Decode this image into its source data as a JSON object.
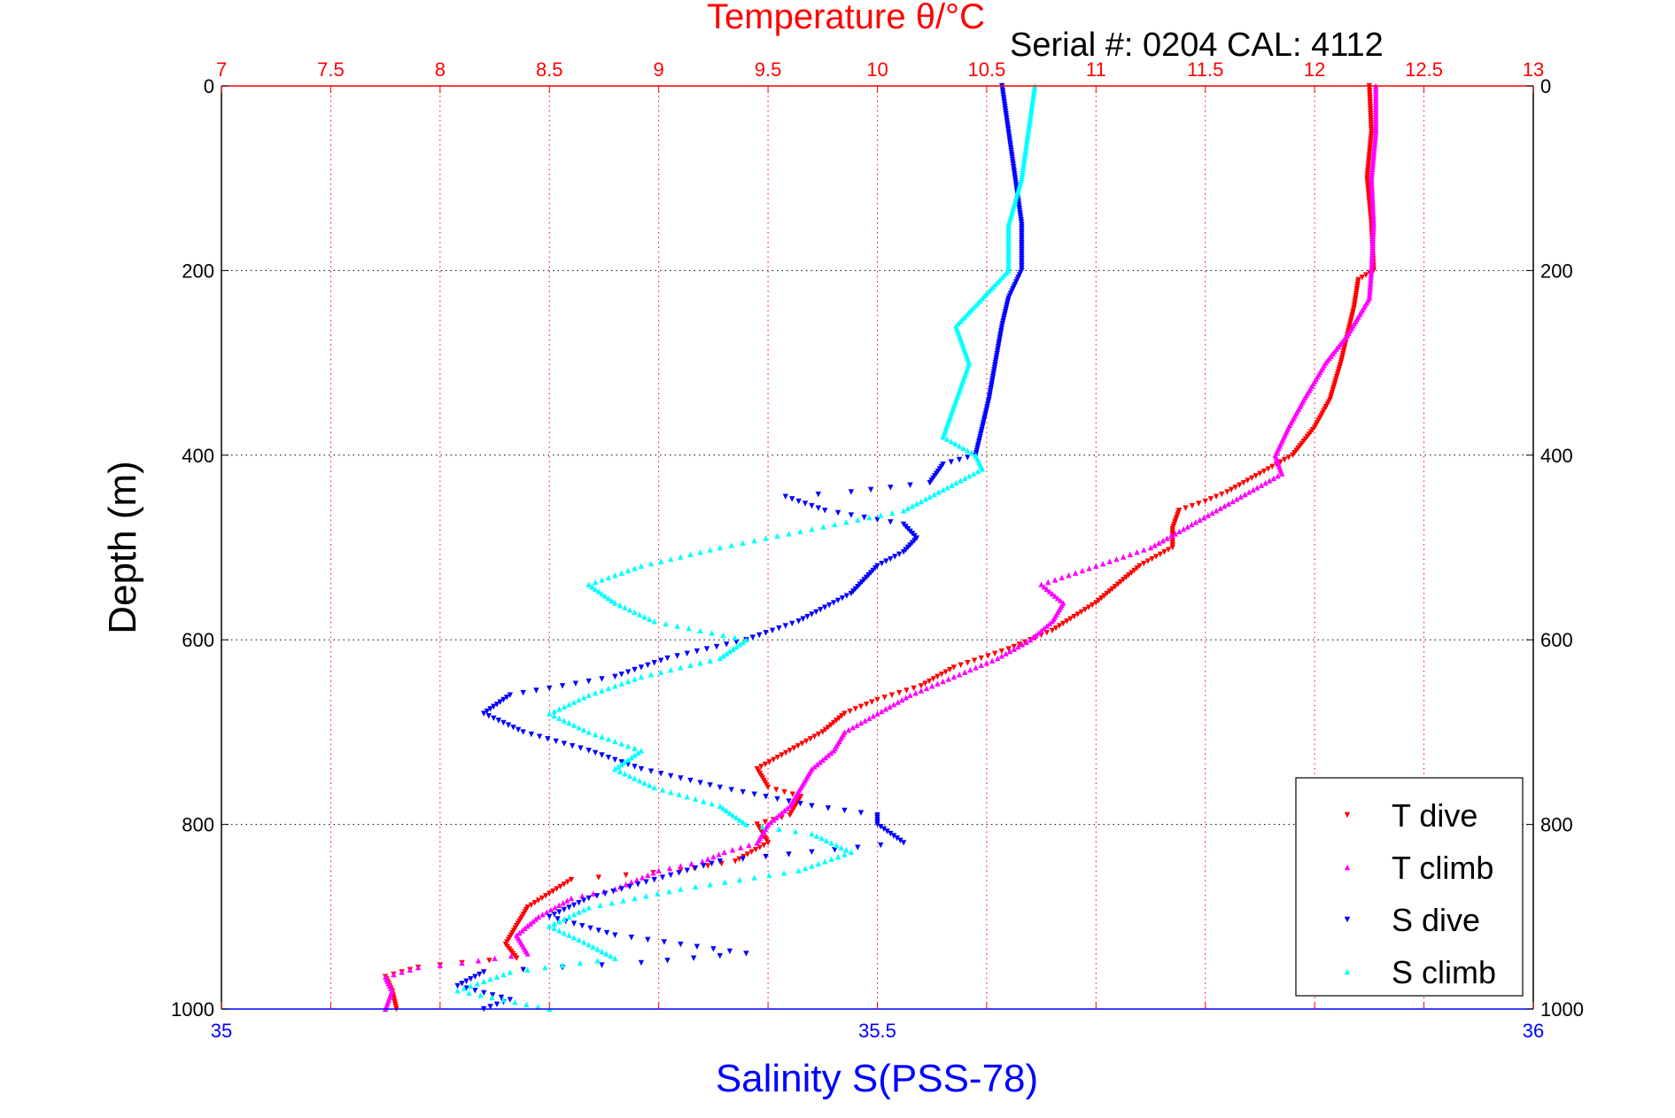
{
  "chart_data": {
    "type": "scatter",
    "title": "Temperature θ/°C",
    "subtitle": "Serial #: 0204  CAL: 4112",
    "ylabel": "Depth (m)",
    "xlabel": "Salinity S(PSS-78)",
    "ylim": [
      0,
      1000
    ],
    "ylim_reversed": true,
    "y_ticks": [
      "0",
      "200",
      "400",
      "600",
      "800",
      "1000"
    ],
    "temperature_axis": {
      "lim": [
        7,
        13
      ],
      "ticks": [
        "7",
        "7.5",
        "8",
        "8.5",
        "9",
        "9.5",
        "10",
        "10.5",
        "11",
        "11.5",
        "12",
        "12.5",
        "13"
      ],
      "position": "top",
      "color": "#ff0000"
    },
    "salinity_axis": {
      "lim": [
        35,
        36
      ],
      "ticks": [
        "35",
        "35.5",
        "36"
      ],
      "position": "bottom",
      "color": "#0000ff"
    },
    "grid": true,
    "legend_position": "bottom-right",
    "series": [
      {
        "name": "T dive",
        "axis": "temperature",
        "color": "#ff0000",
        "marker": "triangle-down",
        "points": [
          [
            12.25,
            0
          ],
          [
            12.26,
            50
          ],
          [
            12.24,
            100
          ],
          [
            12.26,
            150
          ],
          [
            12.27,
            200
          ],
          [
            12.2,
            210
          ],
          [
            12.18,
            240
          ],
          [
            12.15,
            270
          ],
          [
            12.12,
            300
          ],
          [
            12.07,
            340
          ],
          [
            12.0,
            370
          ],
          [
            11.9,
            400
          ],
          [
            11.75,
            420
          ],
          [
            11.6,
            440
          ],
          [
            11.5,
            450
          ],
          [
            11.38,
            460
          ],
          [
            11.35,
            480
          ],
          [
            11.35,
            500
          ],
          [
            11.2,
            520
          ],
          [
            11.1,
            540
          ],
          [
            11.0,
            560
          ],
          [
            10.9,
            575
          ],
          [
            10.8,
            590
          ],
          [
            10.6,
            610
          ],
          [
            10.35,
            630
          ],
          [
            10.2,
            650
          ],
          [
            10.0,
            665
          ],
          [
            9.85,
            680
          ],
          [
            9.75,
            700
          ],
          [
            9.6,
            720
          ],
          [
            9.45,
            740
          ],
          [
            9.5,
            760
          ],
          [
            9.65,
            770
          ],
          [
            9.6,
            790
          ],
          [
            9.45,
            800
          ],
          [
            9.5,
            820
          ],
          [
            9.35,
            840
          ],
          [
            9.1,
            850
          ],
          [
            8.6,
            860
          ],
          [
            8.5,
            875
          ],
          [
            8.4,
            890
          ],
          [
            8.35,
            910
          ],
          [
            8.3,
            930
          ],
          [
            8.35,
            945
          ],
          [
            8.1,
            950
          ],
          [
            7.9,
            955
          ],
          [
            7.75,
            965
          ],
          [
            7.78,
            980
          ],
          [
            7.8,
            1000
          ]
        ]
      },
      {
        "name": "T climb",
        "axis": "temperature",
        "color": "#ff00ff",
        "marker": "triangle-up",
        "points": [
          [
            12.28,
            0
          ],
          [
            12.28,
            50
          ],
          [
            12.26,
            100
          ],
          [
            12.27,
            150
          ],
          [
            12.26,
            200
          ],
          [
            12.25,
            230
          ],
          [
            12.2,
            250
          ],
          [
            12.15,
            270
          ],
          [
            12.05,
            300
          ],
          [
            11.95,
            340
          ],
          [
            11.88,
            370
          ],
          [
            11.82,
            400
          ],
          [
            11.85,
            420
          ],
          [
            11.7,
            440
          ],
          [
            11.55,
            460
          ],
          [
            11.4,
            480
          ],
          [
            11.25,
            500
          ],
          [
            11.0,
            520
          ],
          [
            10.75,
            540
          ],
          [
            10.85,
            560
          ],
          [
            10.8,
            580
          ],
          [
            10.7,
            600
          ],
          [
            10.55,
            620
          ],
          [
            10.35,
            640
          ],
          [
            10.15,
            660
          ],
          [
            10.0,
            680
          ],
          [
            9.85,
            700
          ],
          [
            9.8,
            720
          ],
          [
            9.7,
            740
          ],
          [
            9.65,
            760
          ],
          [
            9.6,
            780
          ],
          [
            9.5,
            800
          ],
          [
            9.45,
            820
          ],
          [
            9.3,
            830
          ],
          [
            9.2,
            840
          ],
          [
            9.0,
            850
          ],
          [
            8.8,
            870
          ],
          [
            8.6,
            880
          ],
          [
            8.45,
            900
          ],
          [
            8.35,
            920
          ],
          [
            8.4,
            940
          ],
          [
            8.1,
            950
          ],
          [
            7.9,
            955
          ],
          [
            7.75,
            965
          ],
          [
            7.78,
            980
          ],
          [
            7.75,
            1000
          ]
        ]
      },
      {
        "name": "S dive",
        "axis": "salinity",
        "color": "#0000ff",
        "marker": "triangle-down",
        "points": [
          [
            35.595,
            0
          ],
          [
            35.6,
            50
          ],
          [
            35.605,
            100
          ],
          [
            35.61,
            150
          ],
          [
            35.61,
            200
          ],
          [
            35.6,
            230
          ],
          [
            35.595,
            260
          ],
          [
            35.59,
            300
          ],
          [
            35.585,
            340
          ],
          [
            35.58,
            370
          ],
          [
            35.575,
            400
          ],
          [
            35.55,
            410
          ],
          [
            35.54,
            430
          ],
          [
            35.48,
            440
          ],
          [
            35.43,
            445
          ],
          [
            35.46,
            460
          ],
          [
            35.52,
            475
          ],
          [
            35.53,
            490
          ],
          [
            35.52,
            505
          ],
          [
            35.5,
            520
          ],
          [
            35.48,
            550
          ],
          [
            35.44,
            580
          ],
          [
            35.4,
            600
          ],
          [
            35.34,
            620
          ],
          [
            35.3,
            640
          ],
          [
            35.22,
            660
          ],
          [
            35.2,
            680
          ],
          [
            35.23,
            700
          ],
          [
            35.28,
            720
          ],
          [
            35.32,
            740
          ],
          [
            35.38,
            760
          ],
          [
            35.45,
            780
          ],
          [
            35.5,
            790
          ],
          [
            35.5,
            800
          ],
          [
            35.52,
            820
          ],
          [
            35.45,
            830
          ],
          [
            35.38,
            840
          ],
          [
            35.33,
            860
          ],
          [
            35.28,
            880
          ],
          [
            35.25,
            900
          ],
          [
            35.3,
            920
          ],
          [
            35.4,
            940
          ],
          [
            35.32,
            950
          ],
          [
            35.2,
            960
          ],
          [
            35.18,
            975
          ],
          [
            35.22,
            990
          ],
          [
            35.2,
            1000
          ]
        ]
      },
      {
        "name": "S climb",
        "axis": "salinity",
        "color": "#00ffff",
        "marker": "triangle-up",
        "points": [
          [
            35.62,
            0
          ],
          [
            35.615,
            50
          ],
          [
            35.61,
            100
          ],
          [
            35.6,
            150
          ],
          [
            35.6,
            200
          ],
          [
            35.58,
            230
          ],
          [
            35.56,
            260
          ],
          [
            35.57,
            300
          ],
          [
            35.56,
            340
          ],
          [
            35.55,
            380
          ],
          [
            35.575,
            400
          ],
          [
            35.58,
            415
          ],
          [
            35.56,
            430
          ],
          [
            35.52,
            460
          ],
          [
            35.45,
            480
          ],
          [
            35.38,
            500
          ],
          [
            35.32,
            520
          ],
          [
            35.28,
            540
          ],
          [
            35.3,
            560
          ],
          [
            35.33,
            580
          ],
          [
            35.4,
            600
          ],
          [
            35.38,
            620
          ],
          [
            35.32,
            640
          ],
          [
            35.28,
            660
          ],
          [
            35.25,
            680
          ],
          [
            35.28,
            700
          ],
          [
            35.32,
            720
          ],
          [
            35.3,
            740
          ],
          [
            35.33,
            760
          ],
          [
            35.38,
            780
          ],
          [
            35.4,
            800
          ],
          [
            35.45,
            810
          ],
          [
            35.48,
            830
          ],
          [
            35.44,
            850
          ],
          [
            35.35,
            870
          ],
          [
            35.28,
            890
          ],
          [
            35.25,
            910
          ],
          [
            35.28,
            930
          ],
          [
            35.3,
            945
          ],
          [
            35.22,
            960
          ],
          [
            35.18,
            980
          ],
          [
            35.25,
            1000
          ]
        ]
      }
    ]
  }
}
